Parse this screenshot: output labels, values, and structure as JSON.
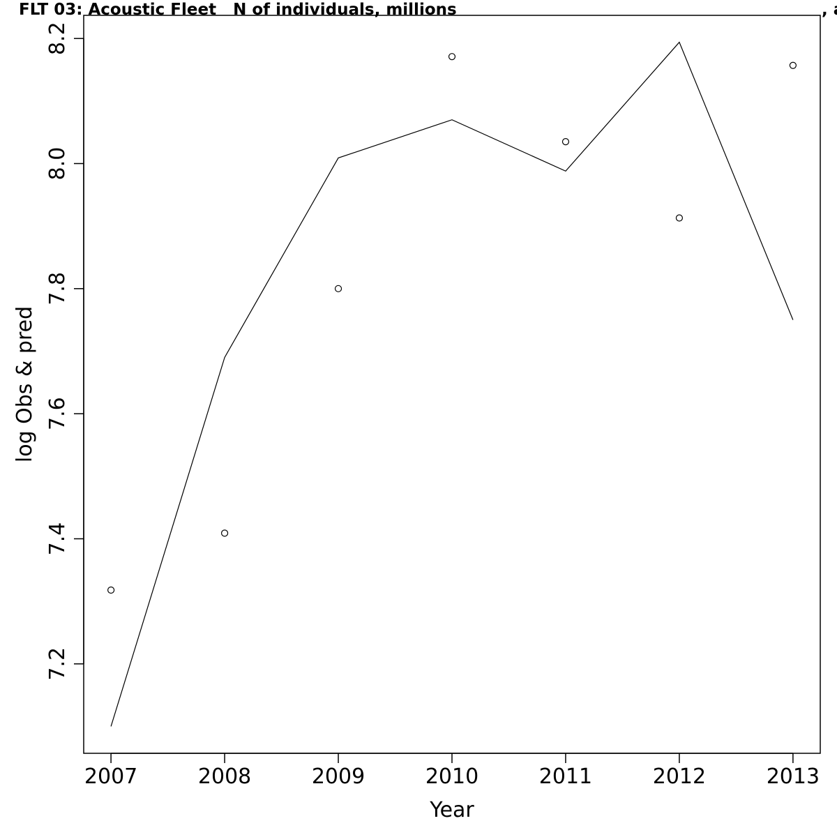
{
  "title_left": "FLT 03: Acoustic Fleet   N of individuals, millions",
  "title_right": ", a",
  "chart_data": {
    "type": "line",
    "xlabel": "Year",
    "ylabel": "log Obs & pred",
    "x": [
      2007,
      2008,
      2009,
      2010,
      2011,
      2012,
      2013
    ],
    "xticks": [
      "2007",
      "2008",
      "2009",
      "2010",
      "2011",
      "2012",
      "2013"
    ],
    "yticks": [
      "7.2",
      "7.4",
      "7.6",
      "7.8",
      "8.0",
      "8.2"
    ],
    "ytick_values": [
      7.2,
      7.4,
      7.6,
      7.8,
      8.0,
      8.2
    ],
    "xlim": [
      2006.76,
      2013.24
    ],
    "ylim": [
      7.057,
      8.237
    ],
    "series": [
      {
        "style": "points",
        "marker": "open-circle",
        "values": [
          7.318,
          7.409,
          7.8,
          8.171,
          8.035,
          7.913,
          8.157
        ]
      },
      {
        "style": "line",
        "values": [
          7.1,
          7.69,
          8.009,
          8.07,
          7.988,
          8.194,
          7.75
        ]
      }
    ],
    "grid": false,
    "legend": "none"
  }
}
